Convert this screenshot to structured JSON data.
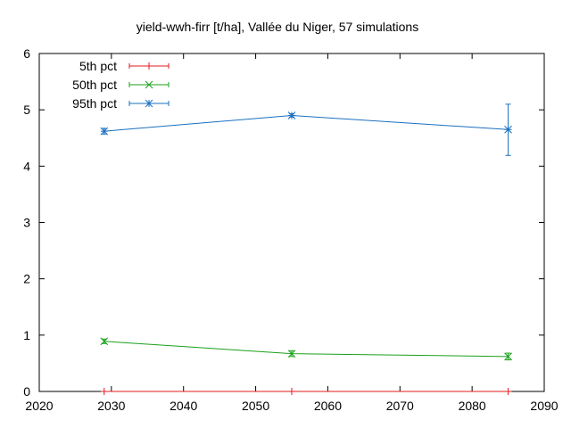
{
  "chart_data": {
    "type": "line",
    "title": "yield-wwh-firr [t/ha], Vallée du Niger, 57 simulations",
    "xlabel": "",
    "ylabel": "",
    "xlim": [
      2020,
      2090
    ],
    "ylim": [
      0,
      6
    ],
    "xticks": [
      2020,
      2030,
      2040,
      2050,
      2060,
      2070,
      2080,
      2090
    ],
    "yticks": [
      0,
      1,
      2,
      3,
      4,
      5,
      6
    ],
    "grid": false,
    "legend_position": "top-left",
    "series": [
      {
        "name": "5th pct",
        "color": "#e41a1c",
        "marker": "plus",
        "x": [
          2029,
          2055,
          2085
        ],
        "y": [
          0.0,
          0.0,
          0.0
        ],
        "err_low": [
          0.0,
          0.0,
          0.0
        ],
        "err_high": [
          0.0,
          0.0,
          0.0
        ]
      },
      {
        "name": "50th pct",
        "color": "#1aa01a",
        "marker": "x",
        "x": [
          2029,
          2055,
          2085
        ],
        "y": [
          0.89,
          0.67,
          0.62
        ],
        "err_low": [
          0.85,
          0.62,
          0.56
        ],
        "err_high": [
          0.93,
          0.72,
          0.68
        ]
      },
      {
        "name": "95th pct",
        "color": "#1a6fc0",
        "marker": "star",
        "x": [
          2029,
          2055,
          2085
        ],
        "y": [
          4.62,
          4.9,
          4.65
        ],
        "err_low": [
          4.57,
          4.87,
          4.19
        ],
        "err_high": [
          4.67,
          4.93,
          5.1
        ]
      }
    ]
  }
}
